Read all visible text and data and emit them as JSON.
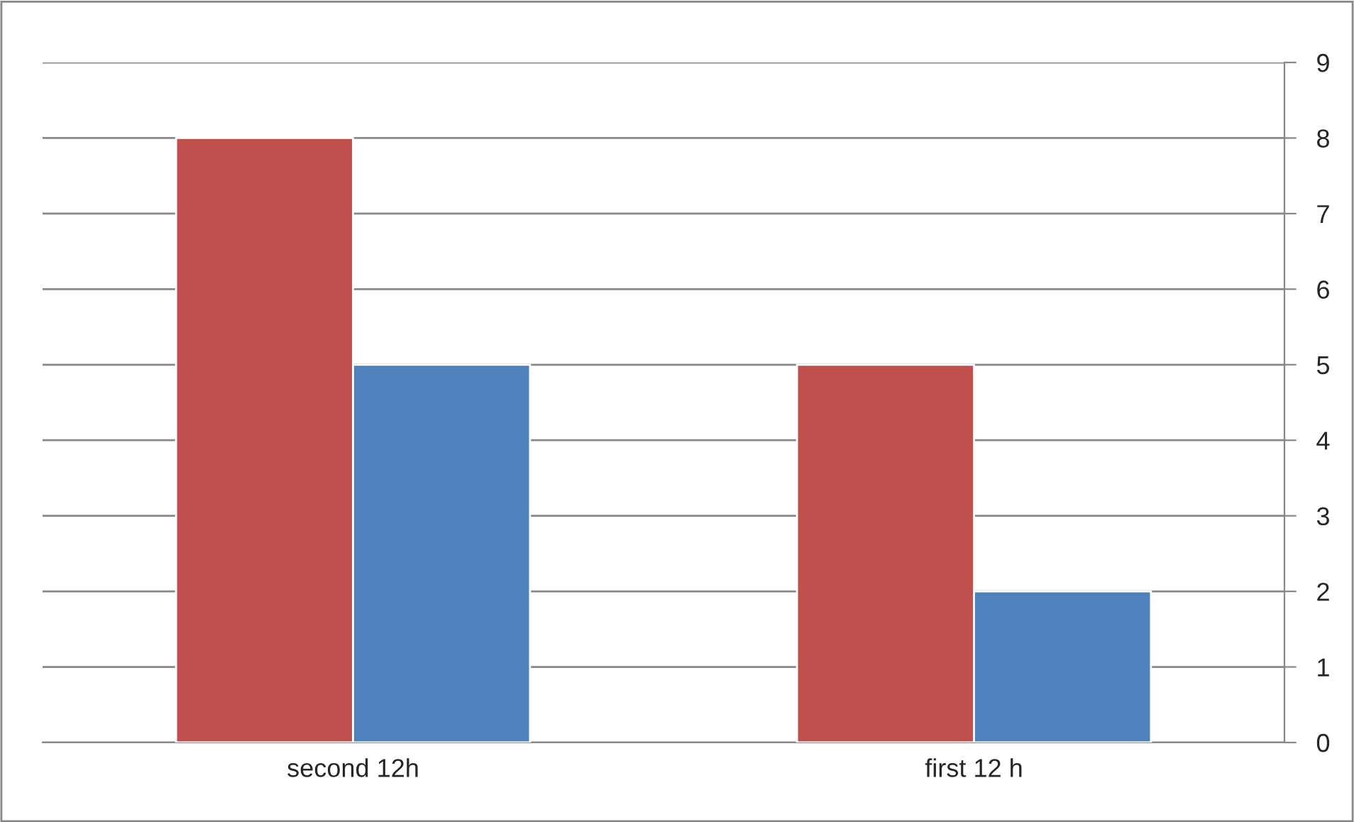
{
  "chart_data": {
    "type": "bar",
    "categories": [
      "second 12h",
      "first 12 h"
    ],
    "series": [
      {
        "color": "#c0504d",
        "values": [
          8,
          5
        ]
      },
      {
        "color": "#4f81bd",
        "values": [
          5,
          2
        ]
      }
    ],
    "ylim": [
      0,
      9
    ],
    "yticks": [
      0,
      1,
      2,
      3,
      4,
      5,
      6,
      7,
      8,
      9
    ],
    "grid": "y",
    "legend": false
  }
}
